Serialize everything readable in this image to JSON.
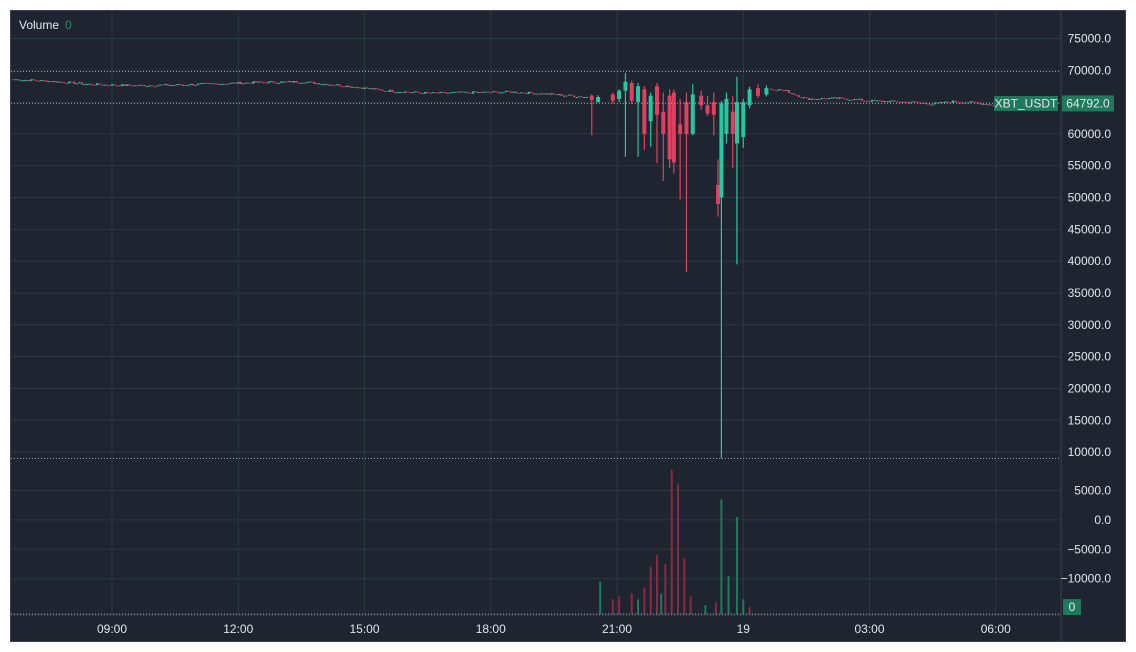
{
  "legend": {
    "label": "Volume",
    "value": "0"
  },
  "colors": {
    "background": "#1e2430",
    "grid": "#2a3a3d",
    "up": "#26c6a0",
    "down": "#e0405e",
    "vol_up": "#1f7a5c",
    "vol_down": "#8a2a40",
    "badge": "#1f7a5c",
    "text": "#e3e6ea"
  },
  "chart_data": {
    "type": "candlestick",
    "series_name": "XBT_USDT",
    "last_price": "64792.0",
    "volume_badge": "0",
    "x_ticks": [
      "09:00",
      "12:00",
      "15:00",
      "18:00",
      "21:00",
      "19",
      "03:00",
      "06:00"
    ],
    "x_tick_hours": [
      9,
      12,
      15,
      18,
      21,
      24,
      27,
      30
    ],
    "x_range_hours": [
      6.6,
      31.55
    ],
    "price_axis": {
      "ylim": [
        8600,
        79000
      ],
      "ticks": [
        "75000.0",
        "70000.0",
        "65000.0",
        "60000.0",
        "55000.0",
        "50000.0",
        "45000.0",
        "40000.0",
        "35000.0",
        "30000.0",
        "25000.0",
        "20000.0",
        "15000.0",
        "10000.0"
      ],
      "tick_values": [
        75000,
        70000,
        65000,
        60000,
        55000,
        50000,
        45000,
        40000,
        35000,
        30000,
        25000,
        20000,
        15000,
        10000
      ],
      "dotted_levels": [
        69800,
        9000
      ]
    },
    "volume_axis": {
      "ylim": [
        -16000,
        9500
      ],
      "ticks": [
        "5000.0",
        "0.0",
        "−5000.0",
        "−10000.0"
      ],
      "tick_values": [
        5000,
        0,
        -5000,
        -10000
      ]
    },
    "baseline_path": [
      [
        6.6,
        68600
      ],
      [
        7.5,
        68300
      ],
      [
        8.5,
        67800
      ],
      [
        9.5,
        67600
      ],
      [
        10.5,
        67700
      ],
      [
        11.5,
        67900
      ],
      [
        12.5,
        68100
      ],
      [
        13.5,
        68200
      ],
      [
        14.5,
        67600
      ],
      [
        15.5,
        66800
      ],
      [
        16.5,
        66400
      ],
      [
        17.5,
        66500
      ],
      [
        18.5,
        66600
      ],
      [
        19.5,
        66200
      ],
      [
        20.3,
        65800
      ],
      [
        20.5,
        66000
      ],
      [
        21.0,
        65500
      ],
      [
        21.5,
        64000
      ],
      [
        22.0,
        63000
      ],
      [
        22.5,
        62000
      ],
      [
        23.0,
        62500
      ],
      [
        23.5,
        64000
      ],
      [
        24.0,
        66500
      ],
      [
        24.5,
        67200
      ],
      [
        25.0,
        66800
      ],
      [
        25.5,
        65500
      ],
      [
        26.0,
        65600
      ],
      [
        26.5,
        65500
      ],
      [
        27.0,
        65200
      ],
      [
        27.5,
        65100
      ],
      [
        28.0,
        65000
      ],
      [
        28.5,
        64700
      ],
      [
        29.0,
        65100
      ],
      [
        29.5,
        64900
      ],
      [
        30.0,
        64500
      ],
      [
        30.6,
        64792
      ]
    ],
    "spike_candles": [
      {
        "t": 20.4,
        "o": 66000,
        "c": 65300,
        "h": 66200,
        "l": 59800
      },
      {
        "t": 20.55,
        "o": 65000,
        "c": 65800,
        "h": 66100,
        "l": 64900
      },
      {
        "t": 20.9,
        "o": 66200,
        "c": 65200,
        "h": 66500,
        "l": 64800
      },
      {
        "t": 21.05,
        "o": 65500,
        "c": 66800,
        "h": 67000,
        "l": 65000
      },
      {
        "t": 21.2,
        "o": 66800,
        "c": 68200,
        "h": 69600,
        "l": 56400
      },
      {
        "t": 21.35,
        "o": 68000,
        "c": 65200,
        "h": 68400,
        "l": 64700
      },
      {
        "t": 21.5,
        "o": 65000,
        "c": 67500,
        "h": 68000,
        "l": 56400
      },
      {
        "t": 21.65,
        "o": 67000,
        "c": 60000,
        "h": 67500,
        "l": 57500
      },
      {
        "t": 21.8,
        "o": 62000,
        "c": 66000,
        "h": 66500,
        "l": 58000
      },
      {
        "t": 21.95,
        "o": 67500,
        "c": 63000,
        "h": 68000,
        "l": 55400
      },
      {
        "t": 22.1,
        "o": 63500,
        "c": 60000,
        "h": 66500,
        "l": 52600
      },
      {
        "t": 22.25,
        "o": 66000,
        "c": 56000,
        "h": 67000,
        "l": 54600
      },
      {
        "t": 22.35,
        "o": 66500,
        "c": 55500,
        "h": 67000,
        "l": 53800
      },
      {
        "t": 22.5,
        "o": 61500,
        "c": 60000,
        "h": 65500,
        "l": 49700
      },
      {
        "t": 22.65,
        "o": 65000,
        "c": 60000,
        "h": 66500,
        "l": 38300
      },
      {
        "t": 22.8,
        "o": 60000,
        "c": 66200,
        "h": 67800,
        "l": 59800
      },
      {
        "t": 23.0,
        "o": 66000,
        "c": 64500,
        "h": 66800,
        "l": 63800
      },
      {
        "t": 23.15,
        "o": 64500,
        "c": 63200,
        "h": 66000,
        "l": 62800
      },
      {
        "t": 23.3,
        "o": 65000,
        "c": 63000,
        "h": 66500,
        "l": 59800
      },
      {
        "t": 23.4,
        "o": 52000,
        "c": 49000,
        "h": 56000,
        "l": 47000
      },
      {
        "t": 23.48,
        "o": 50000,
        "c": 64800,
        "h": 65200,
        "l": 9000
      },
      {
        "t": 23.6,
        "o": 60000,
        "c": 65500,
        "h": 66500,
        "l": 58500
      },
      {
        "t": 23.75,
        "o": 63500,
        "c": 60000,
        "h": 66000,
        "l": 54600
      },
      {
        "t": 23.85,
        "o": 58500,
        "c": 65000,
        "h": 69000,
        "l": 39500
      },
      {
        "t": 24.0,
        "o": 59500,
        "c": 65000,
        "h": 65500,
        "l": 57800
      },
      {
        "t": 24.15,
        "o": 64500,
        "c": 67000,
        "h": 67400,
        "l": 64000
      },
      {
        "t": 24.35,
        "o": 67200,
        "c": 66000,
        "h": 67800,
        "l": 65600
      },
      {
        "t": 24.55,
        "o": 66200,
        "c": 67200,
        "h": 67600,
        "l": 65900
      }
    ],
    "volume_bars": [
      {
        "t": 20.6,
        "v": -10500,
        "d": "up"
      },
      {
        "t": 20.9,
        "v": -13500,
        "d": "down"
      },
      {
        "t": 21.05,
        "v": -13000,
        "d": "down"
      },
      {
        "t": 21.35,
        "v": -12500,
        "d": "down"
      },
      {
        "t": 21.5,
        "v": -13500,
        "d": "up"
      },
      {
        "t": 21.65,
        "v": -11500,
        "d": "down"
      },
      {
        "t": 21.8,
        "v": -8000,
        "d": "down"
      },
      {
        "t": 21.95,
        "v": -6000,
        "d": "down"
      },
      {
        "t": 22.05,
        "v": -12500,
        "d": "up"
      },
      {
        "t": 22.15,
        "v": -7500,
        "d": "down"
      },
      {
        "t": 22.3,
        "v": 8500,
        "d": "down"
      },
      {
        "t": 22.45,
        "v": 6000,
        "d": "down"
      },
      {
        "t": 22.6,
        "v": -6500,
        "d": "down"
      },
      {
        "t": 22.75,
        "v": -13000,
        "d": "down"
      },
      {
        "t": 23.1,
        "v": -14500,
        "d": "up"
      },
      {
        "t": 23.35,
        "v": -14000,
        "d": "down"
      },
      {
        "t": 23.48,
        "v": 3500,
        "d": "up"
      },
      {
        "t": 23.65,
        "v": -9500,
        "d": "up"
      },
      {
        "t": 23.85,
        "v": 500,
        "d": "up"
      },
      {
        "t": 24.0,
        "v": -13500,
        "d": "up"
      },
      {
        "t": 24.15,
        "v": -14800,
        "d": "down"
      }
    ]
  }
}
